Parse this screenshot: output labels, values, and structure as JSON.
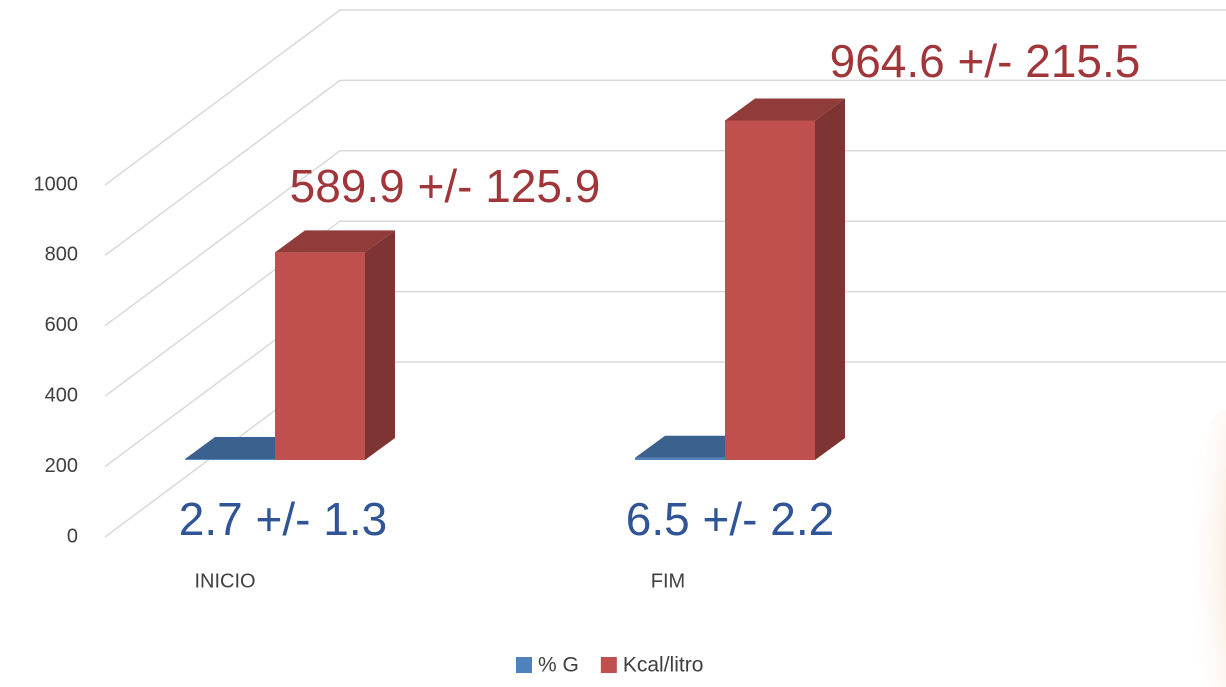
{
  "chart_data": {
    "type": "bar3d",
    "categories": [
      "INICIO",
      "FIM"
    ],
    "series": [
      {
        "name": "% G",
        "color": "#4f81bd",
        "values": [
          2.7,
          6.5
        ],
        "value_labels": [
          "2.7 +/- 1.3",
          "6.5 +/- 2.2"
        ]
      },
      {
        "name": "Kcal/litro",
        "color": "#c0504d",
        "values": [
          589.9,
          964.6
        ],
        "value_labels": [
          "589.9 +/- 125.9",
          "964.6 +/- 215.5"
        ]
      }
    ],
    "ylim": [
      0,
      1000
    ],
    "yticks": [
      0,
      200,
      400,
      600,
      800,
      1000
    ],
    "grid": true,
    "legend": "bottom"
  }
}
